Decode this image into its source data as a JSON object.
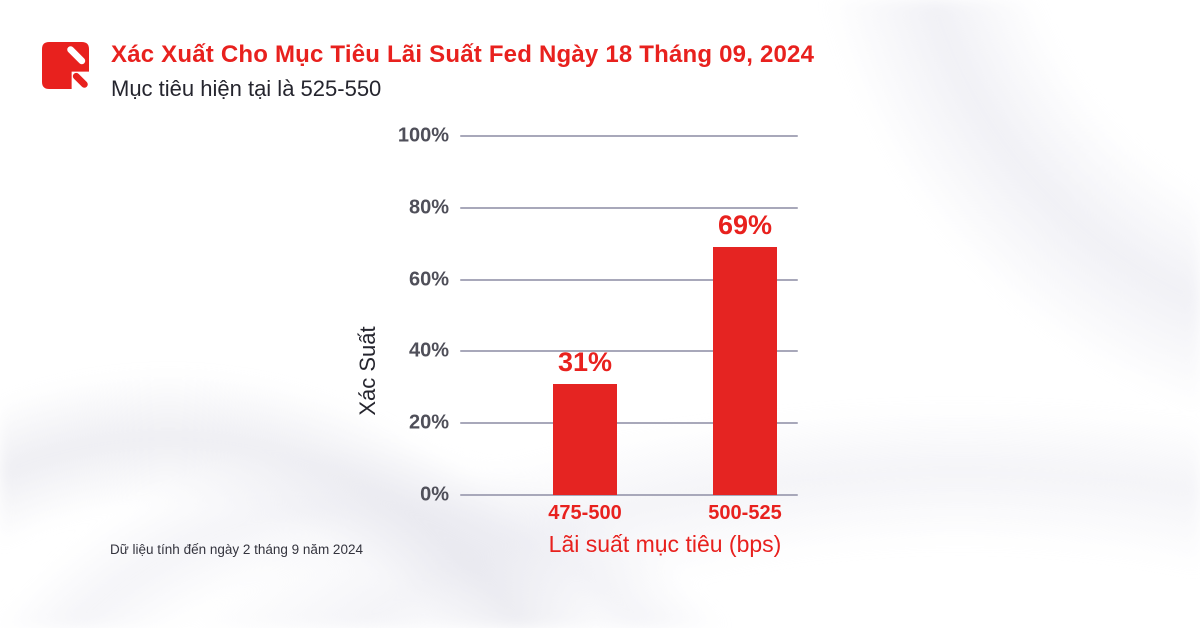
{
  "header": {
    "title": "Xác Xuất Cho Mục Tiêu Lãi Suất Fed Ngày 18 Tháng 09, 2024",
    "subtitle": "Mục tiêu hiện tại là 525-550",
    "logo_icon": "brand-logo-red-square-double-slash"
  },
  "footnote": "Dữ liệu tính đến ngày 2 tháng 9 năm 2024",
  "colors": {
    "accent_red": "#e8211e",
    "bar_red": "#e52422",
    "dark_text": "#25252e",
    "tick_text": "#4f4f59",
    "gridline": "#a8a8ba",
    "footnote_text": "#34343e"
  },
  "chart_data": {
    "type": "bar",
    "title": "",
    "categories": [
      "475-500",
      "500-525"
    ],
    "values": [
      31,
      69
    ],
    "value_labels": [
      "31%",
      "69%"
    ],
    "xlabel": "Lãi suất mục tiêu (bps)",
    "ylabel": "Xác Suất",
    "ylim": [
      0,
      100
    ],
    "yticks": [
      0,
      20,
      40,
      60,
      80,
      100
    ],
    "ytick_labels": [
      "0%",
      "20%",
      "40%",
      "60%",
      "80%",
      "100%"
    ],
    "grid": "horizontal",
    "legend": "none"
  }
}
